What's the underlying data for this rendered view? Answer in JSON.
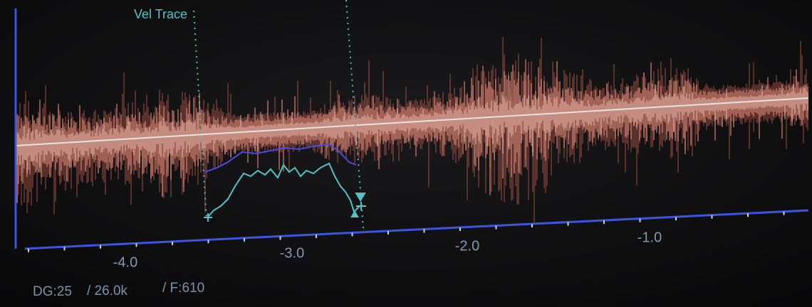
{
  "screen": {
    "trace_label": "Vel Trace",
    "axis_labels": [
      "-4.0",
      "-3.0",
      "-2.0",
      "-1.0"
    ],
    "status": [
      "DG:25",
      "/ 26.0k",
      "/ F:610"
    ]
  }
}
